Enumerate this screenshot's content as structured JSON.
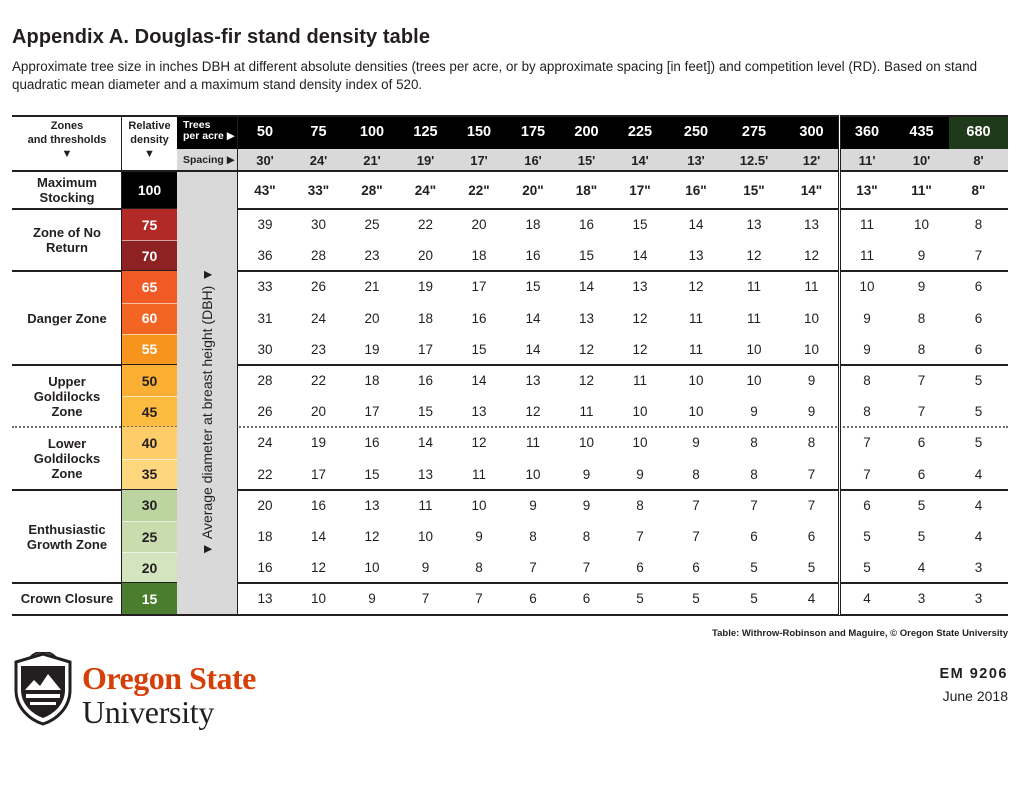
{
  "title": "Appendix A. Douglas-fir stand density table",
  "subtitle": "Approximate tree size in inches DBH at different absolute densities (trees per acre, or by approximate spacing [in feet]) and competition level (RD). Based on stand quadratic mean diameter and a maximum stand density index of 520.",
  "table": {
    "zones_header": "Zones\nand thresholds\n▼",
    "rd_header": "Relative\ndensity\n▼",
    "tpa_header": "Trees\nper acre ▶",
    "spacing_header": "Spacing ▶",
    "dbh_label": "▼ Average diameter at breast height (DBH) ▼",
    "tpa": [
      "50",
      "75",
      "100",
      "125",
      "150",
      "175",
      "200",
      "225",
      "250",
      "275",
      "300",
      "360",
      "435",
      "680"
    ],
    "spacing": [
      "30'",
      "24'",
      "21'",
      "19'",
      "17'",
      "16'",
      "15'",
      "14'",
      "13'",
      "12.5'",
      "12'",
      "11'",
      "10'",
      "8'"
    ],
    "zones": [
      {
        "name": "Maximum\nStocking",
        "rows": [
          {
            "rd": "100",
            "color": "#000000",
            "text_color": "#ffffff",
            "values": [
              "43\"",
              "33\"",
              "28\"",
              "24\"",
              "22\"",
              "20\"",
              "18\"",
              "17\"",
              "16\"",
              "15\"",
              "14\"",
              "13\"",
              "11\"",
              "8\""
            ]
          }
        ]
      },
      {
        "name": "Zone of No\nReturn",
        "rows": [
          {
            "rd": "75",
            "color": "#b22a25",
            "text_color": "#ffffff",
            "values": [
              "39",
              "30",
              "25",
              "22",
              "20",
              "18",
              "16",
              "15",
              "14",
              "13",
              "13",
              "11",
              "10",
              "8"
            ]
          },
          {
            "rd": "70",
            "color": "#8e2121",
            "text_color": "#ffffff",
            "values": [
              "36",
              "28",
              "23",
              "20",
              "18",
              "16",
              "15",
              "14",
              "13",
              "12",
              "12",
              "11",
              "9",
              "7"
            ]
          }
        ]
      },
      {
        "name": "Danger Zone",
        "rows": [
          {
            "rd": "65",
            "color": "#f15a24",
            "text_color": "#ffffff",
            "values": [
              "33",
              "26",
              "21",
              "19",
              "17",
              "15",
              "14",
              "13",
              "12",
              "11",
              "11",
              "10",
              "9",
              "6"
            ]
          },
          {
            "rd": "60",
            "color": "#f26522",
            "text_color": "#ffffff",
            "values": [
              "31",
              "24",
              "20",
              "18",
              "16",
              "14",
              "13",
              "12",
              "11",
              "11",
              "10",
              "9",
              "8",
              "6"
            ]
          },
          {
            "rd": "55",
            "color": "#f7941d",
            "text_color": "#ffffff",
            "values": [
              "30",
              "23",
              "19",
              "17",
              "15",
              "14",
              "12",
              "12",
              "11",
              "10",
              "10",
              "9",
              "8",
              "6"
            ]
          }
        ]
      },
      {
        "name": "Upper\nGoldilocks\nZone",
        "rows": [
          {
            "rd": "50",
            "color": "#fbb034",
            "text_color": "#231f20",
            "values": [
              "28",
              "22",
              "18",
              "16",
              "14",
              "13",
              "12",
              "11",
              "10",
              "10",
              "9",
              "8",
              "7",
              "5"
            ]
          },
          {
            "rd": "45",
            "color": "#fdbb40",
            "text_color": "#231f20",
            "values": [
              "26",
              "20",
              "17",
              "15",
              "13",
              "12",
              "11",
              "10",
              "10",
              "9",
              "9",
              "8",
              "7",
              "5"
            ]
          }
        ]
      },
      {
        "name": "Lower\nGoldilocks\nZone",
        "rows": [
          {
            "rd": "40",
            "color": "#fdcd6a",
            "text_color": "#231f20",
            "values": [
              "24",
              "19",
              "16",
              "14",
              "12",
              "11",
              "10",
              "10",
              "9",
              "8",
              "8",
              "7",
              "6",
              "5"
            ]
          },
          {
            "rd": "35",
            "color": "#fed67e",
            "text_color": "#231f20",
            "values": [
              "22",
              "17",
              "15",
              "13",
              "11",
              "10",
              "9",
              "9",
              "8",
              "8",
              "7",
              "7",
              "6",
              "4"
            ]
          }
        ]
      },
      {
        "name": "Enthusiastic\nGrowth Zone",
        "rows": [
          {
            "rd": "30",
            "color": "#bcd5a0",
            "text_color": "#231f20",
            "values": [
              "20",
              "16",
              "13",
              "11",
              "10",
              "9",
              "9",
              "8",
              "7",
              "7",
              "7",
              "6",
              "5",
              "4"
            ]
          },
          {
            "rd": "25",
            "color": "#c8dcae",
            "text_color": "#231f20",
            "values": [
              "18",
              "14",
              "12",
              "10",
              "9",
              "8",
              "8",
              "7",
              "7",
              "6",
              "6",
              "5",
              "5",
              "4"
            ]
          },
          {
            "rd": "20",
            "color": "#d4e4bf",
            "text_color": "#231f20",
            "values": [
              "16",
              "12",
              "10",
              "9",
              "8",
              "7",
              "7",
              "6",
              "6",
              "5",
              "5",
              "5",
              "4",
              "3"
            ]
          }
        ]
      },
      {
        "name": "Crown Closure",
        "rows": [
          {
            "rd": "15",
            "color": "#4a7d2e",
            "text_color": "#ffffff",
            "values": [
              "13",
              "10",
              "9",
              "7",
              "7",
              "6",
              "6",
              "5",
              "5",
              "5",
              "4",
              "4",
              "3",
              "3"
            ]
          }
        ]
      }
    ]
  },
  "credit": "Table: Withrow-Robinson and Maguire, © Oregon State University",
  "logo": {
    "line1": "Oregon State",
    "line2": "University",
    "icon": "osu-beaver-shield-icon"
  },
  "publication": {
    "number": "EM 9206",
    "date": "June 2018"
  },
  "colors": {
    "osu_orange": "#d73f09",
    "header_black": "#000000",
    "dark_green_header": "#1f3a1a",
    "spacing_gray": "#d9d9d9"
  }
}
